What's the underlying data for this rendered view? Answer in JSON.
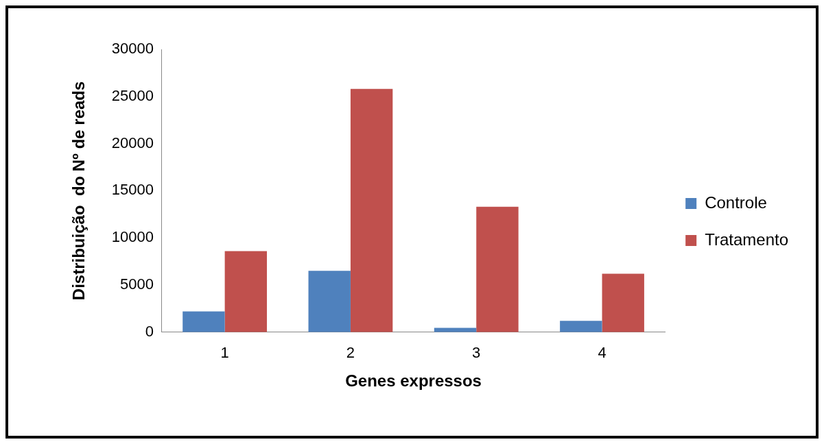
{
  "chart_data": {
    "type": "bar",
    "xlabel": "Genes expressos",
    "ylabel": "Distribuição  do Nº de reads",
    "categories": [
      "1",
      "2",
      "3",
      "4"
    ],
    "series": [
      {
        "name": "Controle",
        "color": "#4f81bd",
        "values": [
          2200,
          6500,
          450,
          1200
        ]
      },
      {
        "name": "Tratamento",
        "color": "#c0504d",
        "values": [
          8600,
          25800,
          13300,
          6200
        ]
      }
    ],
    "ylim": [
      0,
      30000
    ],
    "yticks": [
      0,
      5000,
      10000,
      15000,
      20000,
      25000,
      30000
    ],
    "grid": false,
    "legend": "right"
  }
}
